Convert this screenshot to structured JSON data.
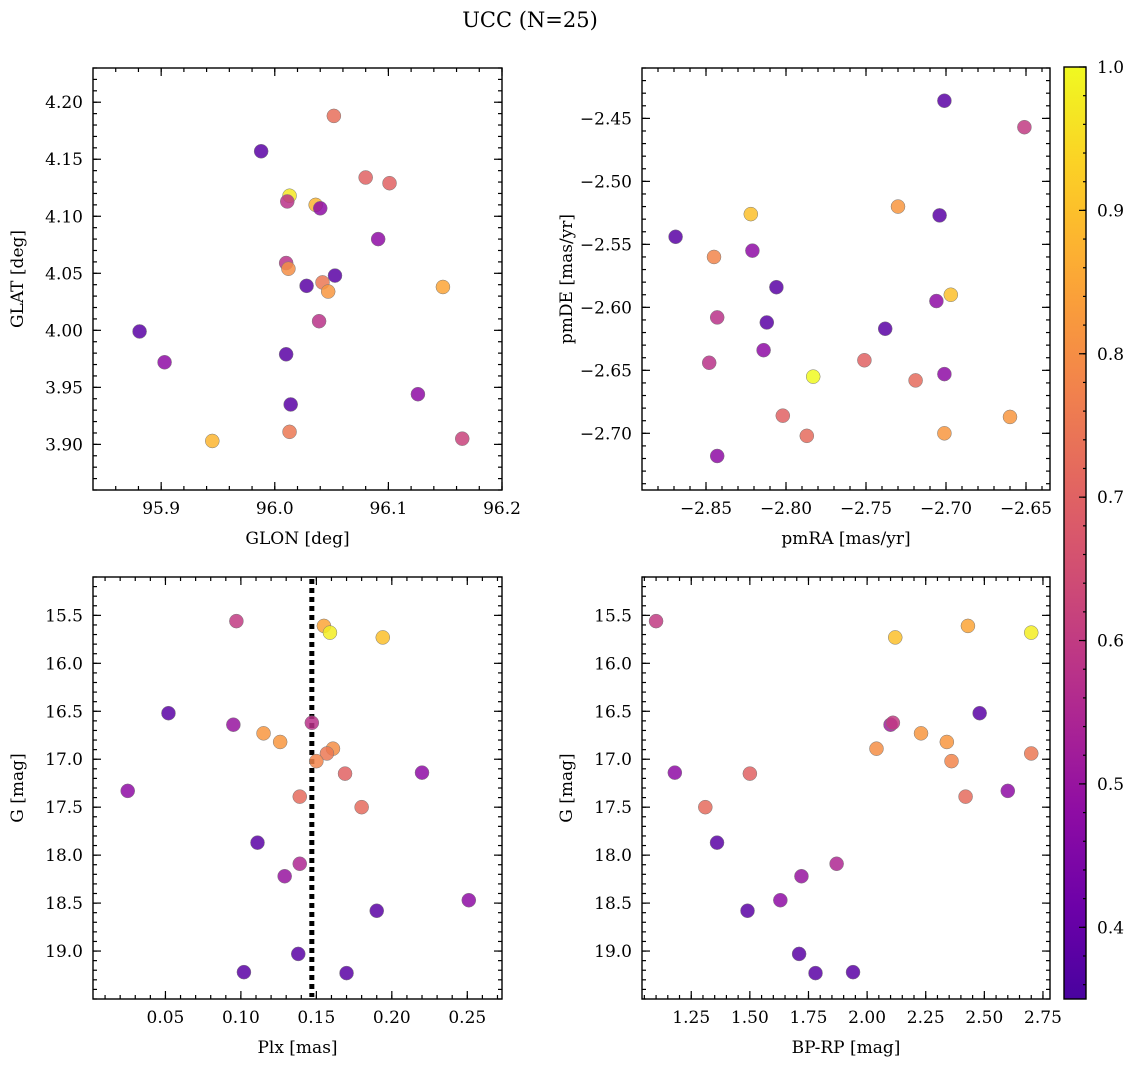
{
  "figure": {
    "title": "UCC (N=25)"
  },
  "colorbar": {
    "cmap": "plasma",
    "range": [
      0.35,
      1.0
    ],
    "ticks": [
      0.4,
      0.5,
      0.6,
      0.7,
      0.8,
      0.9,
      1.0
    ],
    "tick_labels": [
      "0.4",
      "0.5",
      "0.6",
      "0.7",
      "0.8",
      "0.9",
      "1.0"
    ]
  },
  "chart_data": [
    {
      "type": "scatter",
      "id": "glon-glat",
      "xlabel": "GLON [deg]",
      "ylabel": "GLAT [deg]",
      "xlim": [
        95.84,
        96.2
      ],
      "ylim": [
        3.86,
        4.23
      ],
      "xticks": [
        95.9,
        96.0,
        96.1,
        96.2
      ],
      "xtick_labels": [
        "95.9",
        "96.0",
        "96.1",
        "96.2"
      ],
      "yticks": [
        3.9,
        3.95,
        4.0,
        4.05,
        4.1,
        4.15,
        4.2
      ],
      "ytick_labels": [
        "3.90",
        "3.95",
        "4.00",
        "4.05",
        "4.10",
        "4.15",
        "4.20"
      ],
      "points": [
        {
          "x": 96.052,
          "y": 4.188,
          "c": 0.73
        },
        {
          "x": 95.988,
          "y": 4.157,
          "c": 0.38
        },
        {
          "x": 96.08,
          "y": 4.134,
          "c": 0.7
        },
        {
          "x": 96.101,
          "y": 4.129,
          "c": 0.7
        },
        {
          "x": 96.013,
          "y": 4.118,
          "c": 0.97
        },
        {
          "x": 96.011,
          "y": 4.113,
          "c": 0.58
        },
        {
          "x": 96.036,
          "y": 4.11,
          "c": 0.88
        },
        {
          "x": 96.04,
          "y": 4.107,
          "c": 0.48
        },
        {
          "x": 96.091,
          "y": 4.08,
          "c": 0.48
        },
        {
          "x": 96.01,
          "y": 4.059,
          "c": 0.58
        },
        {
          "x": 96.012,
          "y": 4.054,
          "c": 0.8
        },
        {
          "x": 96.053,
          "y": 4.048,
          "c": 0.38
        },
        {
          "x": 96.042,
          "y": 4.042,
          "c": 0.75
        },
        {
          "x": 96.028,
          "y": 4.039,
          "c": 0.38
        },
        {
          "x": 96.047,
          "y": 4.034,
          "c": 0.82
        },
        {
          "x": 96.148,
          "y": 4.038,
          "c": 0.85
        },
        {
          "x": 96.039,
          "y": 4.008,
          "c": 0.58
        },
        {
          "x": 95.881,
          "y": 3.999,
          "c": 0.38
        },
        {
          "x": 96.01,
          "y": 3.979,
          "c": 0.38
        },
        {
          "x": 95.903,
          "y": 3.972,
          "c": 0.48
        },
        {
          "x": 96.126,
          "y": 3.944,
          "c": 0.48
        },
        {
          "x": 96.014,
          "y": 3.935,
          "c": 0.38
        },
        {
          "x": 96.013,
          "y": 3.911,
          "c": 0.75
        },
        {
          "x": 96.165,
          "y": 3.905,
          "c": 0.62
        },
        {
          "x": 95.945,
          "y": 3.903,
          "c": 0.88
        }
      ]
    },
    {
      "type": "scatter",
      "id": "pmra-pmde",
      "xlabel": "pmRA [mas/yr]",
      "ylabel": "pmDE [mas/yr]",
      "xlim": [
        -2.89,
        -2.635
      ],
      "ylim": [
        -2.745,
        -2.41
      ],
      "xticks": [
        -2.85,
        -2.8,
        -2.75,
        -2.7,
        -2.65
      ],
      "xtick_labels": [
        "−2.85",
        "−2.80",
        "−2.75",
        "−2.70",
        "−2.65"
      ],
      "yticks": [
        -2.7,
        -2.65,
        -2.6,
        -2.55,
        -2.5,
        -2.45
      ],
      "ytick_labels": [
        "−2.70",
        "−2.65",
        "−2.60",
        "−2.55",
        "−2.50",
        "−2.45"
      ],
      "points": [
        {
          "x": -2.701,
          "y": -2.436,
          "c": 0.38
        },
        {
          "x": -2.651,
          "y": -2.457,
          "c": 0.6
        },
        {
          "x": -2.822,
          "y": -2.526,
          "c": 0.9
        },
        {
          "x": -2.73,
          "y": -2.52,
          "c": 0.82
        },
        {
          "x": -2.704,
          "y": -2.527,
          "c": 0.38
        },
        {
          "x": -2.869,
          "y": -2.544,
          "c": 0.38
        },
        {
          "x": -2.821,
          "y": -2.555,
          "c": 0.48
        },
        {
          "x": -2.845,
          "y": -2.56,
          "c": 0.78
        },
        {
          "x": -2.806,
          "y": -2.584,
          "c": 0.38
        },
        {
          "x": -2.697,
          "y": -2.59,
          "c": 0.9
        },
        {
          "x": -2.706,
          "y": -2.595,
          "c": 0.48
        },
        {
          "x": -2.843,
          "y": -2.608,
          "c": 0.58
        },
        {
          "x": -2.812,
          "y": -2.612,
          "c": 0.38
        },
        {
          "x": -2.738,
          "y": -2.617,
          "c": 0.38
        },
        {
          "x": -2.814,
          "y": -2.634,
          "c": 0.48
        },
        {
          "x": -2.751,
          "y": -2.642,
          "c": 0.7
        },
        {
          "x": -2.848,
          "y": -2.644,
          "c": 0.58
        },
        {
          "x": -2.701,
          "y": -2.653,
          "c": 0.48
        },
        {
          "x": -2.783,
          "y": -2.655,
          "c": 1.0
        },
        {
          "x": -2.719,
          "y": -2.658,
          "c": 0.72
        },
        {
          "x": -2.802,
          "y": -2.686,
          "c": 0.7
        },
        {
          "x": -2.66,
          "y": -2.687,
          "c": 0.82
        },
        {
          "x": -2.701,
          "y": -2.7,
          "c": 0.82
        },
        {
          "x": -2.787,
          "y": -2.702,
          "c": 0.72
        },
        {
          "x": -2.843,
          "y": -2.718,
          "c": 0.48
        }
      ]
    },
    {
      "type": "scatter",
      "id": "plx-g",
      "xlabel": "Plx [mas]",
      "ylabel": "G [mag]",
      "xlim": [
        0.002,
        0.273
      ],
      "ylim": [
        19.5,
        15.1
      ],
      "xticks": [
        0.05,
        0.1,
        0.15,
        0.2,
        0.25
      ],
      "xtick_labels": [
        "0.05",
        "0.10",
        "0.15",
        "0.20",
        "0.25"
      ],
      "yticks": [
        15.5,
        16.0,
        16.5,
        17.0,
        17.5,
        18.0,
        18.5,
        19.0
      ],
      "ytick_labels": [
        "15.5",
        "16.0",
        "16.5",
        "17.0",
        "17.5",
        "18.0",
        "18.5",
        "19.0"
      ],
      "vline": {
        "x": 0.147,
        "style": "dotted"
      },
      "points": [
        {
          "x": 0.097,
          "y": 15.56,
          "c": 0.6
        },
        {
          "x": 0.155,
          "y": 15.61,
          "c": 0.85
        },
        {
          "x": 0.159,
          "y": 15.68,
          "c": 0.98
        },
        {
          "x": 0.194,
          "y": 15.73,
          "c": 0.9
        },
        {
          "x": 0.052,
          "y": 16.52,
          "c": 0.38
        },
        {
          "x": 0.095,
          "y": 16.64,
          "c": 0.5
        },
        {
          "x": 0.147,
          "y": 16.62,
          "c": 0.58
        },
        {
          "x": 0.115,
          "y": 16.73,
          "c": 0.82
        },
        {
          "x": 0.126,
          "y": 16.82,
          "c": 0.82
        },
        {
          "x": 0.161,
          "y": 16.89,
          "c": 0.8
        },
        {
          "x": 0.157,
          "y": 16.94,
          "c": 0.75
        },
        {
          "x": 0.15,
          "y": 17.02,
          "c": 0.78
        },
        {
          "x": 0.169,
          "y": 17.15,
          "c": 0.7
        },
        {
          "x": 0.22,
          "y": 17.14,
          "c": 0.48
        },
        {
          "x": 0.025,
          "y": 17.33,
          "c": 0.48
        },
        {
          "x": 0.139,
          "y": 17.39,
          "c": 0.72
        },
        {
          "x": 0.18,
          "y": 17.5,
          "c": 0.72
        },
        {
          "x": 0.111,
          "y": 17.87,
          "c": 0.38
        },
        {
          "x": 0.139,
          "y": 18.09,
          "c": 0.55
        },
        {
          "x": 0.129,
          "y": 18.22,
          "c": 0.5
        },
        {
          "x": 0.251,
          "y": 18.47,
          "c": 0.48
        },
        {
          "x": 0.19,
          "y": 18.58,
          "c": 0.38
        },
        {
          "x": 0.138,
          "y": 19.03,
          "c": 0.38
        },
        {
          "x": 0.102,
          "y": 19.22,
          "c": 0.38
        },
        {
          "x": 0.17,
          "y": 19.23,
          "c": 0.38
        }
      ]
    },
    {
      "type": "scatter",
      "id": "bprp-g",
      "xlabel": "BP-RP [mag]",
      "ylabel": "G [mag]",
      "xlim": [
        1.04,
        2.78
      ],
      "ylim": [
        19.5,
        15.1
      ],
      "xticks": [
        1.25,
        1.5,
        1.75,
        2.0,
        2.25,
        2.5,
        2.75
      ],
      "xtick_labels": [
        "1.25",
        "1.50",
        "1.75",
        "2.00",
        "2.25",
        "2.50",
        "2.75"
      ],
      "yticks": [
        15.5,
        16.0,
        16.5,
        17.0,
        17.5,
        18.0,
        18.5,
        19.0
      ],
      "ytick_labels": [
        "15.5",
        "16.0",
        "16.5",
        "17.0",
        "17.5",
        "18.0",
        "18.5",
        "19.0"
      ],
      "points": [
        {
          "x": 1.1,
          "y": 15.56,
          "c": 0.6
        },
        {
          "x": 2.43,
          "y": 15.61,
          "c": 0.85
        },
        {
          "x": 2.7,
          "y": 15.68,
          "c": 0.98
        },
        {
          "x": 2.12,
          "y": 15.73,
          "c": 0.9
        },
        {
          "x": 2.48,
          "y": 16.52,
          "c": 0.38
        },
        {
          "x": 2.1,
          "y": 16.64,
          "c": 0.52
        },
        {
          "x": 2.11,
          "y": 16.62,
          "c": 0.6
        },
        {
          "x": 2.23,
          "y": 16.73,
          "c": 0.82
        },
        {
          "x": 2.34,
          "y": 16.82,
          "c": 0.82
        },
        {
          "x": 2.04,
          "y": 16.89,
          "c": 0.8
        },
        {
          "x": 2.7,
          "y": 16.94,
          "c": 0.75
        },
        {
          "x": 2.36,
          "y": 17.02,
          "c": 0.78
        },
        {
          "x": 1.18,
          "y": 17.14,
          "c": 0.48
        },
        {
          "x": 1.5,
          "y": 17.15,
          "c": 0.7
        },
        {
          "x": 2.6,
          "y": 17.33,
          "c": 0.48
        },
        {
          "x": 2.42,
          "y": 17.39,
          "c": 0.72
        },
        {
          "x": 1.31,
          "y": 17.5,
          "c": 0.72
        },
        {
          "x": 1.36,
          "y": 17.87,
          "c": 0.38
        },
        {
          "x": 1.87,
          "y": 18.09,
          "c": 0.55
        },
        {
          "x": 1.72,
          "y": 18.22,
          "c": 0.5
        },
        {
          "x": 1.63,
          "y": 18.47,
          "c": 0.48
        },
        {
          "x": 1.49,
          "y": 18.58,
          "c": 0.38
        },
        {
          "x": 1.71,
          "y": 19.03,
          "c": 0.38
        },
        {
          "x": 1.78,
          "y": 19.23,
          "c": 0.38
        },
        {
          "x": 1.94,
          "y": 19.22,
          "c": 0.38
        }
      ]
    }
  ]
}
